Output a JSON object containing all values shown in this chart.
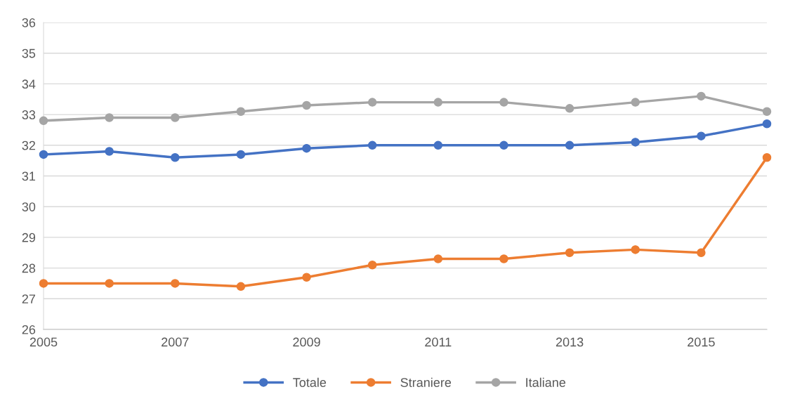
{
  "chart_data": {
    "type": "line",
    "x": [
      2005,
      2006,
      2007,
      2008,
      2009,
      2010,
      2011,
      2012,
      2013,
      2014,
      2015,
      2016
    ],
    "series": [
      {
        "name": "Totale",
        "color": "#4472c4",
        "values": [
          31.7,
          31.8,
          31.6,
          31.7,
          31.9,
          32.0,
          32.0,
          32.0,
          32.0,
          32.1,
          32.3,
          32.7
        ]
      },
      {
        "name": "Straniere",
        "color": "#ed7d31",
        "values": [
          27.5,
          27.5,
          27.5,
          27.4,
          27.7,
          28.1,
          28.3,
          28.3,
          28.5,
          28.6,
          28.5,
          31.6
        ]
      },
      {
        "name": "Italiane",
        "color": "#a5a5a5",
        "values": [
          32.8,
          32.9,
          32.9,
          33.1,
          33.3,
          33.4,
          33.4,
          33.4,
          33.2,
          33.4,
          33.6,
          33.1
        ]
      }
    ],
    "xlim": [
      2005,
      2016
    ],
    "xticks": [
      2005,
      2007,
      2009,
      2011,
      2013,
      2015
    ],
    "ylim": [
      26,
      36
    ],
    "yticks": [
      26,
      27,
      28,
      29,
      30,
      31,
      32,
      33,
      34,
      35,
      36
    ],
    "grid": "y",
    "legend": "bottom",
    "marker": "circle",
    "line_style": "solid"
  }
}
